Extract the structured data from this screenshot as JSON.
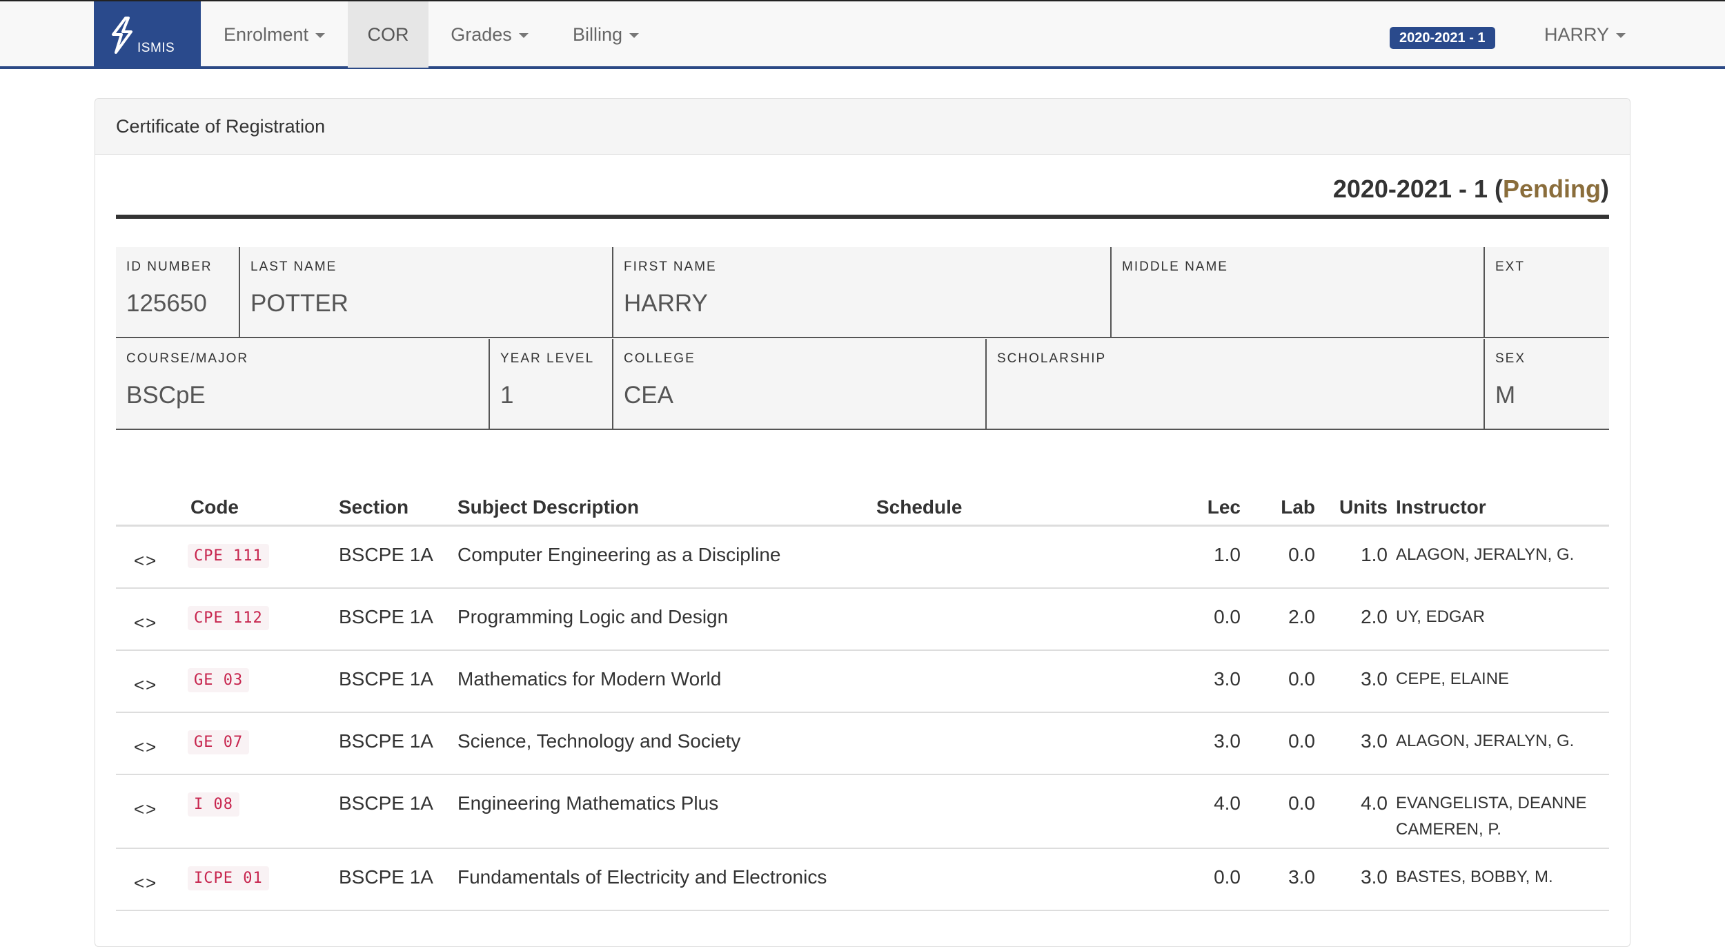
{
  "nav": {
    "brand": "ISMIS",
    "items": [
      {
        "label": "Enrolment",
        "dropdown": true,
        "active": false
      },
      {
        "label": "COR",
        "dropdown": false,
        "active": true
      },
      {
        "label": "Grades",
        "dropdown": true,
        "active": false
      },
      {
        "label": "Billing",
        "dropdown": true,
        "active": false
      }
    ],
    "term_badge": "2020-2021 - 1",
    "user": "HARRY"
  },
  "panel": {
    "title": "Certificate of Registration",
    "term": "2020-2021 - 1",
    "status": "Pending"
  },
  "student": {
    "id_number": {
      "label": "ID NUMBER",
      "value": "125650"
    },
    "last_name": {
      "label": "LAST NAME",
      "value": "POTTER"
    },
    "first_name": {
      "label": "FIRST NAME",
      "value": "HARRY"
    },
    "middle_name": {
      "label": "MIDDLE NAME",
      "value": ""
    },
    "ext": {
      "label": "EXT",
      "value": ""
    },
    "course": {
      "label": "COURSE/MAJOR",
      "value": "BSCpE"
    },
    "year_level": {
      "label": "YEAR LEVEL",
      "value": "1"
    },
    "college": {
      "label": "COLLEGE",
      "value": "CEA"
    },
    "scholarship": {
      "label": "SCHOLARSHIP",
      "value": ""
    },
    "sex": {
      "label": "SEX",
      "value": "M"
    }
  },
  "table": {
    "headers": {
      "code": "Code",
      "section": "Section",
      "description": "Subject Description",
      "schedule": "Schedule",
      "lec": "Lec",
      "lab": "Lab",
      "units": "Units",
      "instructor": "Instructor"
    },
    "rows": [
      {
        "code": "CPE 111",
        "section": "BSCPE 1A",
        "description": "Computer Engineering as a Discipline",
        "schedule": "",
        "lec": "1.0",
        "lab": "0.0",
        "units": "1.0",
        "instructor": "ALAGON, JERALYN, G."
      },
      {
        "code": "CPE 112",
        "section": "BSCPE 1A",
        "description": "Programming Logic and Design",
        "schedule": "",
        "lec": "0.0",
        "lab": "2.0",
        "units": "2.0",
        "instructor": "UY, EDGAR"
      },
      {
        "code": "GE 03",
        "section": "BSCPE 1A",
        "description": "Mathematics for Modern World",
        "schedule": "",
        "lec": "3.0",
        "lab": "0.0",
        "units": "3.0",
        "instructor": "CEPE, ELAINE"
      },
      {
        "code": "GE 07",
        "section": "BSCPE 1A",
        "description": "Science, Technology and Society",
        "schedule": "",
        "lec": "3.0",
        "lab": "0.0",
        "units": "3.0",
        "instructor": "ALAGON, JERALYN, G."
      },
      {
        "code": "I 08",
        "section": "BSCPE 1A",
        "description": "Engineering Mathematics Plus",
        "schedule": "",
        "lec": "4.0",
        "lab": "0.0",
        "units": "4.0",
        "instructor": "EVANGELISTA, DEANNE CAMEREN, P."
      },
      {
        "code": "ICPE 01",
        "section": "BSCPE 1A",
        "description": "Fundamentals of Electricity and Electronics",
        "schedule": "",
        "lec": "0.0",
        "lab": "3.0",
        "units": "3.0",
        "instructor": "BASTES, BOBBY, M."
      }
    ],
    "expand_icon": "<>"
  },
  "colors": {
    "brand": "#2a4a8c",
    "pending": "#8a6d3b",
    "code_text": "#c7254e",
    "code_bg": "#f9f2f4"
  }
}
